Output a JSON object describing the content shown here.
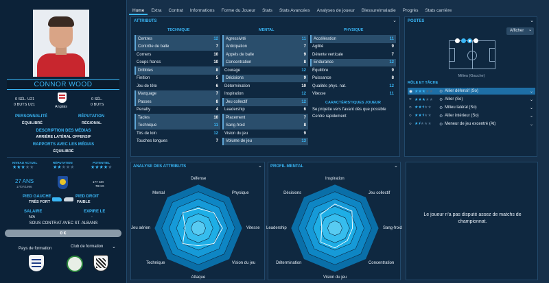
{
  "player": {
    "name": "CONNOR WOOD",
    "sel_u21": "0 SÉL. U21",
    "buts_u21": "0 BUTS U21",
    "sel": "0 SÉL.",
    "buts": "0 BUTS",
    "nation": "Anglais",
    "personality_label": "PERSONNALITÉ",
    "personality": "ÉQUILIBRÉ",
    "reputation_label": "RÉPUTATION",
    "reputation": "RÉGIONAL",
    "media_desc_label": "DESCRIPTION DES MÉDIAS",
    "media_desc": "ARRIÈRE LATÉRAL OFFENSIF",
    "media_rel_label": "RAPPORTS AVEC LES MÉDIAS",
    "media_rel": "ÉQUILIBRÉ",
    "level_current_label": "NIVEAU ACTUEL",
    "reputation_small_label": "RÉPUTATION",
    "potential_label": "POTENTIEL",
    "age": "27 ANS",
    "dob": "17/07/1996",
    "height": "177 CM",
    "weight": "78 KG",
    "left_foot_label": "PIED GAUCHE",
    "left_foot": "TRÈS FORT",
    "right_foot_label": "PIED DROIT",
    "right_foot": "FAIBLE",
    "salary_label": "SALAIRE",
    "salary": "N/A",
    "expires_label": "EXPIRE LE",
    "expires": "-",
    "contract": "SOUS CONTRAT AVEC ST. ALBANS",
    "wage_value": "0 €",
    "training_country_label": "Pays de formation",
    "training_club_label": "Club de formation",
    "level_current_stars": 3,
    "reputation_stars": 2,
    "potential_stars": 3.5
  },
  "tabs": [
    "Home",
    "Extra",
    "Contrat",
    "Informations",
    "Forme du Joueur",
    "Stats",
    "Stats Avancées",
    "Analyses de joueur",
    "Blessure/maladie",
    "Progrès",
    "Stats carrière"
  ],
  "attributes": {
    "title": "ATTRIBUTS",
    "technique_title": "TECHNIQUE",
    "mental_title": "MENTAL",
    "physique_title": "PHYSIQUE",
    "technique": [
      {
        "name": "Centres",
        "value": "12",
        "hl": true
      },
      {
        "name": "Contrôle de balle",
        "value": "7",
        "hl": true
      },
      {
        "name": "Corners",
        "value": "10",
        "hl": false
      },
      {
        "name": "Coups francs",
        "value": "10",
        "hl": false
      },
      {
        "name": "Dribbles",
        "value": "8",
        "hl": true
      },
      {
        "name": "Finition",
        "value": "5",
        "hl": false
      },
      {
        "name": "Jeu de tête",
        "value": "6",
        "hl": false
      },
      {
        "name": "Marquage",
        "value": "7",
        "hl": true
      },
      {
        "name": "Passes",
        "value": "8",
        "hl": true
      },
      {
        "name": "Penalty",
        "value": "4",
        "hl": false
      },
      {
        "name": "Tacles",
        "value": "10",
        "hl": true
      },
      {
        "name": "Technique",
        "value": "11",
        "hl": true
      },
      {
        "name": "Tirs de loin",
        "value": "12",
        "hl": false
      },
      {
        "name": "Touches longues",
        "value": "7",
        "hl": false
      }
    ],
    "mental": [
      {
        "name": "Agressivité",
        "value": "11",
        "hl": true
      },
      {
        "name": "Anticipation",
        "value": "7",
        "hl": true
      },
      {
        "name": "Appels de balle",
        "value": "9",
        "hl": true
      },
      {
        "name": "Concentration",
        "value": "8",
        "hl": true
      },
      {
        "name": "Courage",
        "value": "12",
        "hl": false
      },
      {
        "name": "Décisions",
        "value": "9",
        "hl": true
      },
      {
        "name": "Détermination",
        "value": "10",
        "hl": false
      },
      {
        "name": "Inspiration",
        "value": "12",
        "hl": false
      },
      {
        "name": "Jeu collectif",
        "value": "12",
        "hl": true
      },
      {
        "name": "Leadership",
        "value": "6",
        "hl": false
      },
      {
        "name": "Placement",
        "value": "7",
        "hl": true
      },
      {
        "name": "Sang-froid",
        "value": "8",
        "hl": true
      },
      {
        "name": "Vision du jeu",
        "value": "9",
        "hl": false
      },
      {
        "name": "Volume de jeu",
        "value": "13",
        "hl": true
      }
    ],
    "physique": [
      {
        "name": "Accélération",
        "value": "11",
        "hl": true
      },
      {
        "name": "Agilité",
        "value": "9",
        "hl": false
      },
      {
        "name": "Détente verticale",
        "value": "7",
        "hl": false
      },
      {
        "name": "Endurance",
        "value": "12",
        "hl": true
      },
      {
        "name": "Équilibre",
        "value": "9",
        "hl": false
      },
      {
        "name": "Puissance",
        "value": "8",
        "hl": false
      },
      {
        "name": "Qualités phys. nat.",
        "value": "12",
        "hl": false
      },
      {
        "name": "Vitesse",
        "value": "11",
        "hl": false
      }
    ],
    "traits_title": "CARACTÉRISTIQUES JOUEUR",
    "traits": [
      "Se projette vers l'avant dès que possible",
      "Centre rapidement"
    ]
  },
  "postes": {
    "title": "POSTES",
    "show_button": "Afficher",
    "position_caption": "Milieu (Gauche)",
    "roles_title": "RÔLE ET TÂCHE",
    "roles": [
      {
        "label": "Ailier défensif (So)",
        "stars": 3,
        "selected": true
      },
      {
        "label": "Ailier (So)",
        "stars": 3,
        "selected": false
      },
      {
        "label": "Milieu latéral (So)",
        "stars": 2.5,
        "selected": false
      },
      {
        "label": "Ailier intérieur (So)",
        "stars": 2.5,
        "selected": false
      },
      {
        "label": "Meneur de jeu excentré (At)",
        "stars": 1.5,
        "selected": false
      }
    ]
  },
  "radar_attr": {
    "title": "ANALYSE DES ATTRIBUTS",
    "axes": [
      "Défense",
      "Physique",
      "Vitesse",
      "Vision du jeu",
      "Attaque",
      "Technique",
      "Jeu aérien",
      "Mental"
    ],
    "values": [
      0.45,
      0.5,
      0.55,
      0.5,
      0.4,
      0.5,
      0.3,
      0.5
    ]
  },
  "radar_mental": {
    "title": "PROFIL MENTAL",
    "axes": [
      "Inspiration",
      "Jeu collectif",
      "Sang-froid",
      "Concentration",
      "Vision du jeu",
      "Détermination",
      "Leadership",
      "Décisions"
    ],
    "values": [
      0.55,
      0.55,
      0.4,
      0.4,
      0.45,
      0.45,
      0.3,
      0.45
    ]
  },
  "no_match_text": "Le joueur n'a pas disputé assez de matchs de championnat.",
  "colors": {
    "accent": "#3ab6f5",
    "panel": "#0f2840",
    "radar_fill": "#1aa8e0"
  }
}
